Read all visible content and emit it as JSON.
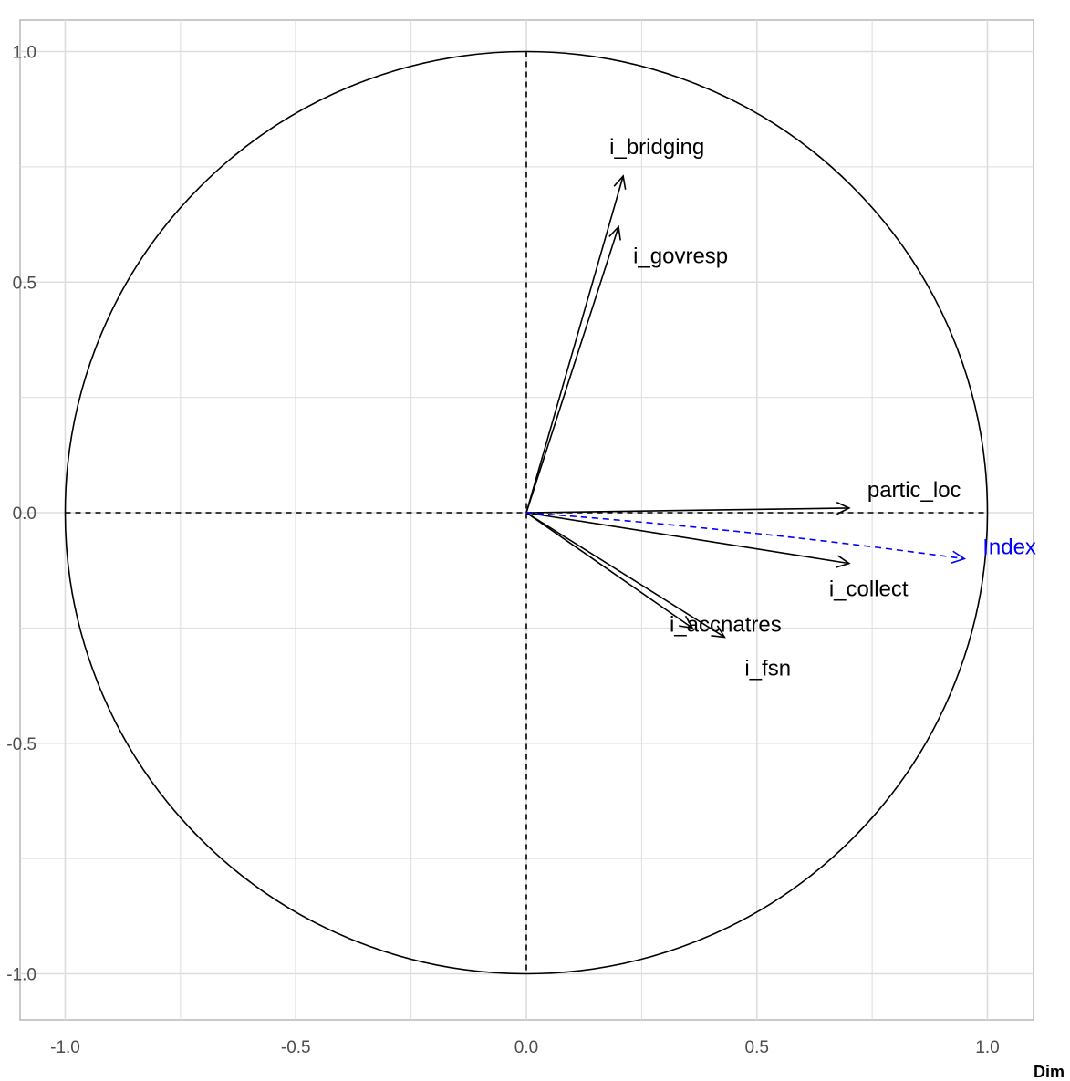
{
  "chart_data": {
    "type": "scatter",
    "title": "",
    "xlabel": "Dim",
    "ylabel": "",
    "xlim": [
      -1.1,
      1.1
    ],
    "ylim": [
      -1.1,
      1.1
    ],
    "x_ticks": [
      -1.0,
      -0.5,
      0.0,
      0.5,
      1.0
    ],
    "x_tick_labels": [
      "-1.0",
      "-0.5",
      "0.0",
      "0.5",
      "1.0"
    ],
    "y_ticks": [
      1.0,
      0.5,
      0.0,
      -0.5,
      -1.0
    ],
    "y_tick_labels": [
      "1.0",
      "0.5",
      "0.0",
      "-0.5",
      "-1.0"
    ],
    "grid": true,
    "unit_circle": true,
    "zero_lines": "dashed",
    "colors": {
      "active": "#000000",
      "supplementary": "#0000ff",
      "grid": "#dddddd",
      "panel_border": "#b3b3b3"
    },
    "series": [
      {
        "name": "active",
        "line": "solid",
        "points": [
          {
            "label": "i_bridging",
            "x": 0.21,
            "y": 0.73
          },
          {
            "label": "i_govresp",
            "x": 0.2,
            "y": 0.62
          },
          {
            "label": "partic_loc",
            "x": 0.7,
            "y": 0.01
          },
          {
            "label": "i_collect",
            "x": 0.7,
            "y": -0.11
          },
          {
            "label": "i_accnatres",
            "x": 0.36,
            "y": -0.25
          },
          {
            "label": "i_fsn",
            "x": 0.43,
            "y": -0.27
          }
        ]
      },
      {
        "name": "supplementary",
        "line": "dashed",
        "points": [
          {
            "label": "Index",
            "x": 0.95,
            "y": -0.1
          }
        ]
      }
    ]
  }
}
